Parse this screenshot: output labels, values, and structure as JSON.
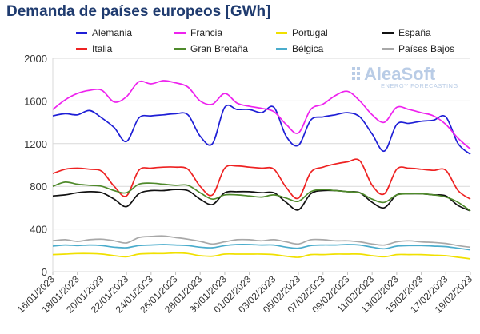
{
  "chart_data": {
    "type": "line",
    "title": "Demanda de países europeos [GWh]",
    "xlabel": "",
    "ylabel": "",
    "ylim": [
      0,
      2000
    ],
    "yticks": [
      0,
      400,
      800,
      1200,
      1600,
      2000
    ],
    "grid": true,
    "legend_position": "top",
    "watermark": {
      "brand": "AleaSoft",
      "tagline": "ENERGY FORECASTING"
    },
    "x": [
      "16/01/2023",
      "17/01/2023",
      "18/01/2023",
      "19/01/2023",
      "20/01/2023",
      "21/01/2023",
      "22/01/2023",
      "23/01/2023",
      "24/01/2023",
      "25/01/2023",
      "26/01/2023",
      "27/01/2023",
      "28/01/2023",
      "29/01/2023",
      "30/01/2023",
      "31/01/2023",
      "01/02/2023",
      "02/02/2023",
      "03/02/2023",
      "04/02/2023",
      "05/02/2023",
      "06/02/2023",
      "07/02/2023",
      "08/02/2023",
      "09/02/2023",
      "10/02/2023",
      "11/02/2023",
      "12/02/2023",
      "13/02/2023",
      "14/02/2023",
      "15/02/2023",
      "16/02/2023",
      "17/02/2023",
      "18/02/2023",
      "19/02/2023"
    ],
    "x_tick_labels": [
      "16/01/2023",
      "18/01/2023",
      "20/01/2023",
      "22/01/2023",
      "24/01/2023",
      "26/01/2023",
      "28/01/2023",
      "30/01/2023",
      "01/02/2023",
      "03/02/2023",
      "05/02/2023",
      "07/02/2023",
      "09/02/2023",
      "11/02/2023",
      "13/02/2023",
      "15/02/2023",
      "17/02/2023",
      "19/02/2023"
    ],
    "series": [
      {
        "name": "Alemania",
        "color": "#1f1fd6",
        "values": [
          1460,
          1480,
          1470,
          1510,
          1440,
          1350,
          1220,
          1440,
          1460,
          1470,
          1480,
          1470,
          1270,
          1200,
          1540,
          1520,
          1520,
          1490,
          1540,
          1270,
          1185,
          1420,
          1450,
          1470,
          1490,
          1450,
          1290,
          1130,
          1380,
          1390,
          1410,
          1420,
          1450,
          1200,
          1100
        ]
      },
      {
        "name": "Francia",
        "color": "#ee22ee",
        "values": [
          1520,
          1610,
          1670,
          1700,
          1700,
          1590,
          1640,
          1780,
          1760,
          1790,
          1770,
          1730,
          1600,
          1570,
          1670,
          1580,
          1550,
          1530,
          1500,
          1380,
          1300,
          1520,
          1570,
          1650,
          1690,
          1600,
          1470,
          1400,
          1540,
          1520,
          1490,
          1460,
          1380,
          1250,
          1150
        ]
      },
      {
        "name": "Portugal",
        "color": "#f0e000",
        "values": [
          160,
          165,
          170,
          170,
          165,
          150,
          140,
          165,
          170,
          170,
          175,
          170,
          150,
          145,
          165,
          165,
          165,
          165,
          160,
          145,
          135,
          160,
          160,
          165,
          165,
          165,
          150,
          140,
          160,
          160,
          160,
          155,
          150,
          135,
          120
        ]
      },
      {
        "name": "España",
        "color": "#111111",
        "values": [
          710,
          720,
          740,
          750,
          740,
          680,
          610,
          730,
          760,
          760,
          770,
          760,
          680,
          630,
          740,
          750,
          750,
          740,
          740,
          650,
          580,
          730,
          760,
          760,
          750,
          740,
          650,
          600,
          720,
          730,
          730,
          720,
          710,
          620,
          570
        ]
      },
      {
        "name": "Italia",
        "color": "#ee2222",
        "values": [
          920,
          960,
          970,
          960,
          940,
          800,
          710,
          950,
          970,
          980,
          980,
          960,
          800,
          720,
          970,
          990,
          980,
          970,
          960,
          790,
          690,
          930,
          980,
          1010,
          1030,
          1040,
          810,
          730,
          960,
          970,
          960,
          950,
          950,
          760,
          680
        ]
      },
      {
        "name": "Gran Bretaña",
        "color": "#4f8a2b",
        "values": [
          800,
          840,
          820,
          810,
          800,
          760,
          740,
          820,
          830,
          820,
          810,
          810,
          740,
          680,
          720,
          720,
          710,
          700,
          720,
          690,
          660,
          750,
          770,
          760,
          750,
          740,
          680,
          650,
          720,
          730,
          730,
          720,
          700,
          650,
          570
        ]
      },
      {
        "name": "Bélgica",
        "color": "#4aaccc",
        "values": [
          240,
          250,
          245,
          250,
          245,
          230,
          225,
          245,
          250,
          255,
          250,
          245,
          230,
          225,
          245,
          255,
          255,
          250,
          250,
          230,
          220,
          245,
          250,
          250,
          255,
          250,
          230,
          215,
          240,
          245,
          245,
          240,
          235,
          220,
          205
        ]
      },
      {
        "name": "Países Bajos",
        "color": "#a8a8a8",
        "values": [
          290,
          300,
          285,
          300,
          305,
          290,
          270,
          320,
          330,
          335,
          320,
          305,
          285,
          260,
          280,
          300,
          300,
          290,
          300,
          280,
          260,
          300,
          300,
          290,
          290,
          280,
          260,
          250,
          280,
          290,
          280,
          275,
          265,
          245,
          230
        ]
      }
    ]
  }
}
